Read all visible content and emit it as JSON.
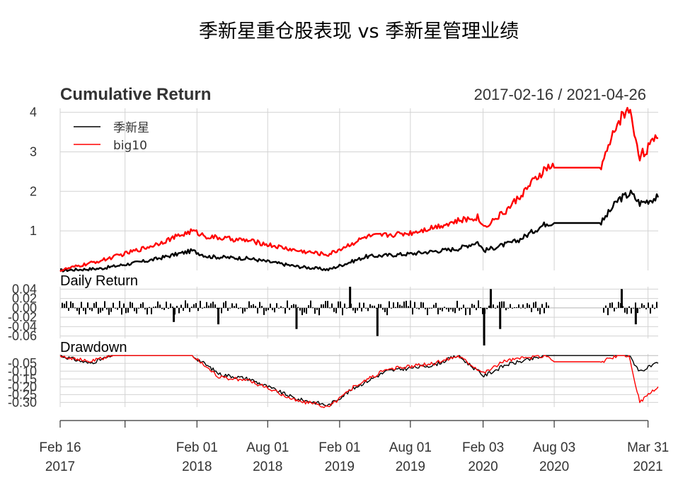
{
  "chart_data": {
    "type": "line",
    "title": "季新星重仓股表现 vs 季新星管理业绩",
    "date_range": "2017-02-16 / 2021-04-26",
    "x_start": "2017-02-16",
    "x_end": "2021-04-26",
    "x_ticks": [
      {
        "date": "2017-02-16",
        "label": [
          "Feb 16",
          "2017"
        ]
      },
      {
        "date": "2017-08-01",
        "label": [
          "",
          ""
        ]
      },
      {
        "date": "2018-02-01",
        "label": [
          "Feb 01",
          "2018"
        ]
      },
      {
        "date": "2018-08-01",
        "label": [
          "Aug 01",
          "2018"
        ]
      },
      {
        "date": "2019-02-01",
        "label": [
          "Feb 01",
          "2019"
        ]
      },
      {
        "date": "2019-08-01",
        "label": [
          "Aug 01",
          "2019"
        ]
      },
      {
        "date": "2020-02-03",
        "label": [
          "Feb 03",
          "2020"
        ]
      },
      {
        "date": "2020-08-03",
        "label": [
          "Aug 03",
          "2020"
        ]
      },
      {
        "date": "2021-03-31",
        "label": [
          "Mar 31",
          "2021"
        ]
      }
    ],
    "legend": [
      {
        "name": "季新星",
        "color": "#000000"
      },
      {
        "name": "big10",
        "color": "#ff0000"
      }
    ],
    "legend_position": "top-left",
    "panels": [
      {
        "title": "Cumulative Return",
        "ylim": [
          0,
          4.1
        ],
        "yticks": [
          "1",
          "2",
          "3",
          "4"
        ],
        "ytick_values": [
          1,
          2,
          3,
          4
        ],
        "series": [
          {
            "name": "季新星",
            "color": "#000000",
            "points": [
              [
                "2017-02-16",
                0
              ],
              [
                "2017-06-01",
                0.05
              ],
              [
                "2017-10-01",
                0.25
              ],
              [
                "2018-01-20",
                0.5
              ],
              [
                "2018-03-01",
                0.35
              ],
              [
                "2018-06-15",
                0.3
              ],
              [
                "2018-10-15",
                0.1
              ],
              [
                "2019-01-03",
                0.02
              ],
              [
                "2019-04-10",
                0.35
              ],
              [
                "2019-08-01",
                0.42
              ],
              [
                "2019-12-01",
                0.55
              ],
              [
                "2020-01-20",
                0.72
              ],
              [
                "2020-02-05",
                0.5
              ],
              [
                "2020-05-01",
                0.75
              ],
              [
                "2020-07-15",
                1.2
              ],
              [
                "2020-08-03",
                1.2
              ],
              [
                "2020-12-01",
                1.2
              ],
              [
                "2021-01-15",
                1.8
              ],
              [
                "2021-02-15",
                1.95
              ],
              [
                "2021-03-10",
                1.7
              ],
              [
                "2021-04-26",
                1.85
              ]
            ]
          },
          {
            "name": "big10",
            "color": "#ff0000",
            "points": [
              [
                "2017-02-16",
                0
              ],
              [
                "2017-06-01",
                0.25
              ],
              [
                "2017-10-01",
                0.6
              ],
              [
                "2018-01-20",
                1.0
              ],
              [
                "2018-03-01",
                0.85
              ],
              [
                "2018-06-15",
                0.75
              ],
              [
                "2018-10-15",
                0.5
              ],
              [
                "2019-01-03",
                0.4
              ],
              [
                "2019-04-10",
                0.85
              ],
              [
                "2019-08-01",
                0.95
              ],
              [
                "2019-12-01",
                1.25
              ],
              [
                "2020-01-20",
                1.35
              ],
              [
                "2020-02-05",
                1.1
              ],
              [
                "2020-04-01",
                1.5
              ],
              [
                "2020-07-15",
                2.6
              ],
              [
                "2020-08-03",
                2.6
              ],
              [
                "2020-12-01",
                2.6
              ],
              [
                "2021-01-15",
                3.8
              ],
              [
                "2021-02-10",
                4.1
              ],
              [
                "2021-03-10",
                2.9
              ],
              [
                "2021-04-26",
                3.35
              ]
            ]
          }
        ]
      },
      {
        "title": "Daily Return",
        "ylim": [
          -0.065,
          0.045
        ],
        "yticks": [
          "0.04",
          "0.02",
          "0.00",
          "-0.02",
          "-0.04",
          "-0.06"
        ],
        "ytick_values": [
          0.04,
          0.02,
          0.0,
          -0.02,
          -0.04,
          -0.06
        ],
        "series": [
          {
            "name": "季新星",
            "color": "#000000",
            "spikes": [
              [
                "2017-12-01",
                -0.03
              ],
              [
                "2018-03-25",
                -0.035
              ],
              [
                "2018-10-11",
                -0.045
              ],
              [
                "2019-02-25",
                0.045
              ],
              [
                "2019-05-06",
                -0.06
              ],
              [
                "2020-02-03",
                -0.08
              ],
              [
                "2020-02-20",
                0.04
              ],
              [
                "2020-03-15",
                -0.045
              ],
              [
                "2021-01-20",
                0.04
              ],
              [
                "2021-02-25",
                -0.035
              ]
            ]
          }
        ]
      },
      {
        "title": "Drawdown",
        "ylim": [
          -0.33,
          0.01
        ],
        "yticks": [
          "-0.05",
          "-0.10",
          "-0.15",
          "-0.20",
          "-0.25",
          "-0.30"
        ],
        "ytick_values": [
          -0.05,
          -0.1,
          -0.15,
          -0.2,
          -0.25,
          -0.3
        ],
        "series": [
          {
            "name": "季新星",
            "color": "#000000",
            "points": [
              [
                "2017-02-16",
                0
              ],
              [
                "2017-05-01",
                -0.05
              ],
              [
                "2017-07-01",
                0
              ],
              [
                "2018-01-20",
                0
              ],
              [
                "2018-04-01",
                -0.12
              ],
              [
                "2018-06-15",
                -0.15
              ],
              [
                "2018-10-15",
                -0.28
              ],
              [
                "2018-12-01",
                -0.3
              ],
              [
                "2019-01-03",
                -0.32
              ],
              [
                "2019-03-15",
                -0.2
              ],
              [
                "2019-06-01",
                -0.1
              ],
              [
                "2019-10-01",
                -0.06
              ],
              [
                "2019-12-01",
                0
              ],
              [
                "2020-02-05",
                -0.13
              ],
              [
                "2020-04-01",
                -0.06
              ],
              [
                "2020-07-15",
                0
              ],
              [
                "2021-02-10",
                0
              ],
              [
                "2021-03-10",
                -0.1
              ],
              [
                "2021-04-26",
                -0.05
              ]
            ]
          },
          {
            "name": "big10",
            "color": "#ff0000",
            "points": [
              [
                "2017-02-16",
                0
              ],
              [
                "2017-05-01",
                -0.04
              ],
              [
                "2017-07-01",
                0
              ],
              [
                "2018-01-20",
                0
              ],
              [
                "2018-04-01",
                -0.14
              ],
              [
                "2018-06-15",
                -0.16
              ],
              [
                "2018-10-15",
                -0.29
              ],
              [
                "2018-12-01",
                -0.31
              ],
              [
                "2019-01-03",
                -0.33
              ],
              [
                "2019-03-15",
                -0.19
              ],
              [
                "2019-06-01",
                -0.09
              ],
              [
                "2019-10-01",
                -0.05
              ],
              [
                "2019-12-01",
                0
              ],
              [
                "2020-02-05",
                -0.11
              ],
              [
                "2020-04-01",
                -0.03
              ],
              [
                "2020-07-15",
                0
              ],
              [
                "2020-08-03",
                -0.04
              ],
              [
                "2020-12-01",
                -0.04
              ],
              [
                "2021-01-15",
                0
              ],
              [
                "2021-02-10",
                0
              ],
              [
                "2021-03-10",
                -0.3
              ],
              [
                "2021-04-26",
                -0.2
              ]
            ]
          }
        ]
      }
    ]
  }
}
